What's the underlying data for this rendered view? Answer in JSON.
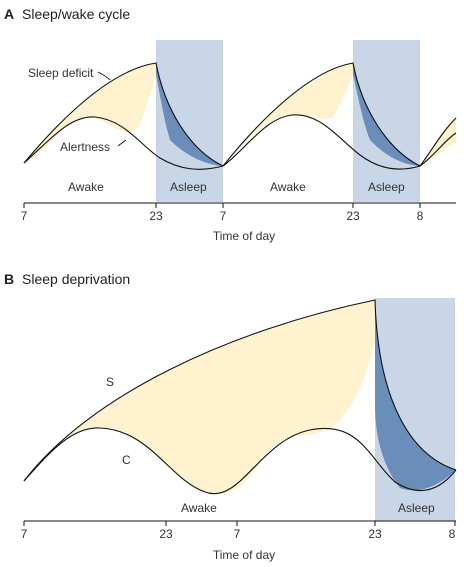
{
  "panel_a": {
    "letter": "A",
    "title": "Sleep/wake cycle",
    "labels": {
      "sleep_deficit": "Sleep deficit",
      "alertness": "Alertness",
      "awake1": "Awake",
      "asleep1": "Asleep",
      "awake2": "Awake",
      "asleep2": "Asleep"
    },
    "ticks": [
      "7",
      "23",
      "7",
      "23",
      "8"
    ],
    "xlabel": "Time of day"
  },
  "panel_b": {
    "letter": "B",
    "title": "Sleep deprivation",
    "labels": {
      "s": "S",
      "c": "C",
      "awake": "Awake",
      "asleep": "Asleep"
    },
    "ticks": [
      "7",
      "23",
      "7",
      "23",
      "8"
    ],
    "xlabel": "Time of day"
  },
  "colors": {
    "sleep_band": "#c9d6e8",
    "deficit_fill": "#fff3cf",
    "sleep_recovery_fill": "#6a8db9"
  }
}
